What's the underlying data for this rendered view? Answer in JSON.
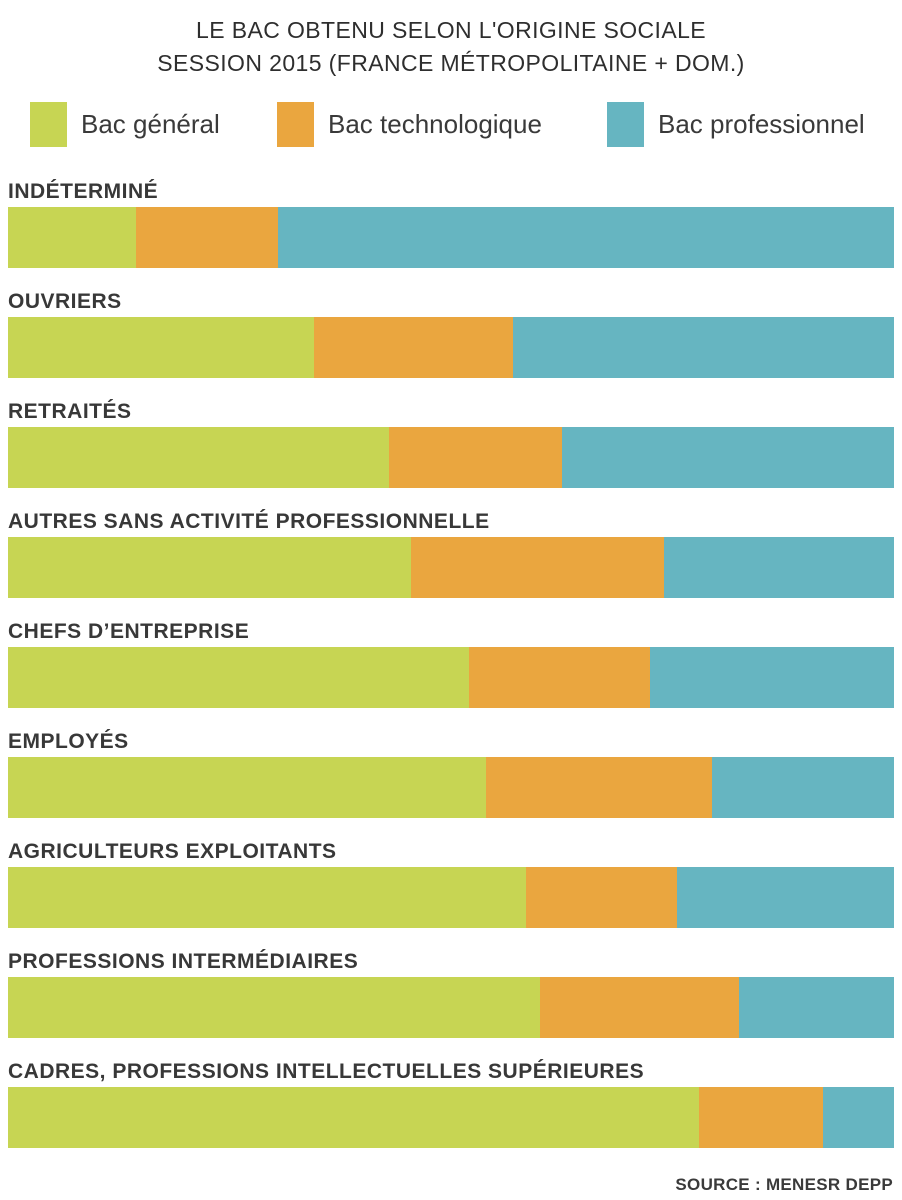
{
  "title": {
    "line1": "LE BAC OBTENU SELON L'ORIGINE SOCIALE",
    "line2": "SESSION 2015 (FRANCE MÉTROPOLITAINE + DOM.)"
  },
  "legend": [
    {
      "label": "Bac général",
      "color": "#c7d553"
    },
    {
      "label": "Bac technologique",
      "color": "#eaa63f"
    },
    {
      "label": "Bac professionnel",
      "color": "#66b5c1"
    }
  ],
  "source": "SOURCE : MENESR DEPP",
  "chart_data": {
    "type": "bar",
    "orientation": "horizontal",
    "stacked": true,
    "unit": "percent",
    "title": "LE BAC OBTENU SELON L'ORIGINE SOCIALE — SESSION 2015 (FRANCE MÉTROPOLITAINE + DOM.)",
    "xlim": [
      0,
      100
    ],
    "grid": false,
    "legend_position": "top",
    "categories": [
      "INDÉTERMINÉ",
      "OUVRIERS",
      "RETRAITÉS",
      "AUTRES SANS ACTIVITÉ PROFESSIONNELLE",
      "CHEFS D’ENTREPRISE",
      "EMPLOYÉS",
      "AGRICULTEURS EXPLOITANTS",
      "PROFESSIONS INTERMÉDIAIRES",
      "CADRES, PROFESSIONS INTELLECTUELLES SUPÉRIEURES"
    ],
    "series": [
      {
        "name": "Bac général",
        "color": "#c7d553",
        "values": [
          14.5,
          34.5,
          43,
          45.5,
          52,
          54,
          58.5,
          60,
          78
        ]
      },
      {
        "name": "Bac technologique",
        "color": "#eaa63f",
        "values": [
          16,
          22.5,
          19.5,
          28.5,
          20.5,
          25.5,
          17,
          22.5,
          14
        ]
      },
      {
        "name": "Bac professionnel",
        "color": "#66b5c1",
        "values": [
          69.5,
          43,
          37.5,
          26,
          27.5,
          20.5,
          24.5,
          17.5,
          8
        ]
      }
    ]
  }
}
